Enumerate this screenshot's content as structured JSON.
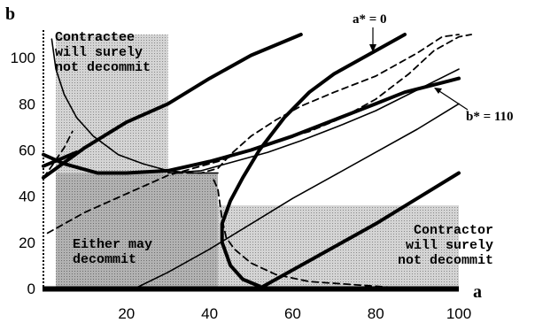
{
  "chart_data": {
    "type": "line",
    "title": "",
    "xlabel": "a",
    "ylabel": "b",
    "xlim": [
      0,
      100
    ],
    "ylim": [
      0,
      110
    ],
    "x_ticks": [
      20,
      40,
      60,
      80,
      100
    ],
    "y_ticks": [
      0,
      20,
      40,
      60,
      80,
      100
    ],
    "grid": false,
    "legend": "none",
    "regions": [
      {
        "label": "Contractee will surely not decommit",
        "lines": [
          "Contractee",
          "will surely",
          "not decommit"
        ],
        "x": [
          3,
          30
        ],
        "y": [
          50,
          110
        ]
      },
      {
        "label": "Either may decommit",
        "lines": [
          "Either may",
          "decommit"
        ],
        "x": [
          3,
          42
        ],
        "y": [
          0,
          50
        ]
      },
      {
        "label": "Contractor will surely not decommit",
        "lines": [
          "Contractor",
          "will surely",
          "not decommit"
        ],
        "x": [
          42,
          100
        ],
        "y": [
          0,
          36
        ]
      }
    ],
    "annotations": [
      {
        "text": "a* = 0"
      },
      {
        "text": "b* = 110"
      }
    ],
    "series": [
      {
        "style": "thick",
        "points": [
          [
            0,
            48
          ],
          [
            10,
            61
          ],
          [
            20,
            72
          ],
          [
            30,
            80
          ],
          [
            40,
            91
          ],
          [
            50,
            101
          ],
          [
            62,
            110
          ]
        ]
      },
      {
        "style": "thick",
        "points": [
          [
            0,
            58
          ],
          [
            5,
            54
          ],
          [
            13,
            50
          ],
          [
            20,
            50
          ],
          [
            30,
            51
          ],
          [
            40,
            55
          ],
          [
            50,
            60
          ],
          [
            60,
            66
          ],
          [
            70,
            73
          ],
          [
            80,
            80
          ],
          [
            87,
            85
          ],
          [
            100,
            91
          ]
        ]
      },
      {
        "style": "thick",
        "points": [
          [
            0,
            53
          ],
          [
            8,
            59
          ]
        ]
      },
      {
        "style": "thick",
        "points": [
          [
            52,
            0
          ],
          [
            62,
            10
          ],
          [
            70,
            18
          ],
          [
            80,
            28
          ],
          [
            90,
            39
          ],
          [
            100,
            50
          ]
        ]
      },
      {
        "style": "thick",
        "points": [
          [
            52,
            1
          ],
          [
            48,
            4
          ],
          [
            45,
            10
          ],
          [
            43,
            20
          ],
          [
            43,
            28
          ],
          [
            45,
            38
          ],
          [
            48,
            48
          ],
          [
            52,
            60
          ],
          [
            58,
            74
          ],
          [
            64,
            85
          ],
          [
            70,
            93
          ],
          [
            78,
            101
          ],
          [
            86,
            109
          ],
          [
            87,
            110
          ]
        ]
      },
      {
        "style": "thin",
        "points": [
          [
            2,
            108
          ],
          [
            3,
            95
          ],
          [
            5,
            84
          ],
          [
            8,
            74
          ],
          [
            12,
            66
          ],
          [
            18,
            58
          ],
          [
            24,
            54
          ],
          [
            30,
            51
          ],
          [
            36,
            50
          ],
          [
            42,
            50
          ]
        ]
      },
      {
        "style": "thin",
        "points": [
          [
            30,
            50
          ],
          [
            38,
            51
          ],
          [
            46,
            55
          ],
          [
            54,
            59
          ],
          [
            62,
            64
          ],
          [
            72,
            71
          ],
          [
            80,
            77
          ],
          [
            90,
            86
          ],
          [
            100,
            95
          ]
        ]
      },
      {
        "style": "thin",
        "points": [
          [
            22,
            0
          ],
          [
            30,
            7
          ],
          [
            40,
            17
          ],
          [
            50,
            28
          ],
          [
            60,
            39
          ],
          [
            70,
            49
          ],
          [
            80,
            59
          ],
          [
            90,
            69
          ],
          [
            100,
            80
          ]
        ]
      },
      {
        "style": "dashed",
        "points": [
          [
            0,
            48
          ],
          [
            2,
            53
          ],
          [
            5,
            61
          ],
          [
            7,
            68
          ]
        ]
      },
      {
        "style": "dashed",
        "points": [
          [
            1,
            24
          ],
          [
            10,
            33
          ],
          [
            20,
            41
          ],
          [
            30,
            49
          ],
          [
            36,
            52
          ],
          [
            42,
            55
          ],
          [
            48,
            59
          ],
          [
            56,
            64
          ],
          [
            64,
            68
          ],
          [
            72,
            74
          ],
          [
            80,
            82
          ],
          [
            88,
            93
          ],
          [
            94,
            103
          ],
          [
            100,
            109
          ],
          [
            103,
            110
          ]
        ]
      },
      {
        "style": "dashed",
        "points": [
          [
            32,
            50
          ],
          [
            38,
            50
          ],
          [
            42,
            52
          ],
          [
            45,
            58
          ],
          [
            50,
            66
          ],
          [
            56,
            73
          ],
          [
            62,
            79
          ],
          [
            70,
            85
          ],
          [
            80,
            92
          ],
          [
            90,
            102
          ],
          [
            96,
            109
          ],
          [
            100,
            110
          ]
        ]
      },
      {
        "style": "dashed",
        "points": [
          [
            41,
            47
          ],
          [
            42,
            43
          ],
          [
            43,
            30
          ],
          [
            44,
            22
          ],
          [
            46,
            17
          ],
          [
            50,
            11
          ],
          [
            56,
            6
          ],
          [
            64,
            3
          ],
          [
            72,
            2
          ],
          [
            80,
            1
          ],
          [
            88,
            0
          ],
          [
            100,
            0
          ]
        ]
      }
    ]
  }
}
